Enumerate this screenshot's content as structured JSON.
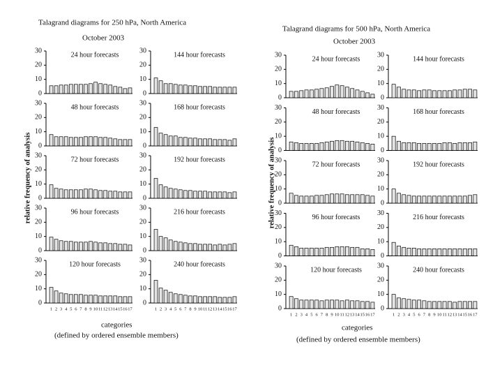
{
  "figures": [
    {
      "title": "Talagrand diagrams for 250 hPa, North America",
      "subtitle": "October 2003",
      "ylabel": "relative frequency of analysis",
      "xlabel": "categories",
      "xnote": "(defined by ordered ensemble members)",
      "chart_data": [
        {
          "type": "bar",
          "title": "24 hour forecasts",
          "color": "#e4e4e4",
          "ylim": [
            0,
            30
          ],
          "yticks": [
            0,
            10,
            20,
            30
          ],
          "values": [
            5.5,
            5.5,
            6,
            6,
            6.5,
            6.5,
            6.5,
            6.5,
            7,
            8,
            7,
            6.5,
            6,
            5,
            4.5,
            3.5,
            4
          ]
        },
        {
          "type": "bar",
          "title": "144 hour forecasts",
          "color": "#e4e4e4",
          "ylim": [
            0,
            30
          ],
          "yticks": [
            0,
            10,
            20,
            30
          ],
          "values": [
            11,
            9,
            7,
            7,
            6.5,
            6,
            6,
            5.5,
            5.5,
            5,
            5,
            5,
            4.5,
            4.5,
            4.5,
            4.5,
            4.5
          ]
        },
        {
          "type": "bar",
          "title": "48 hour forecasts",
          "color": "#e4e4e4",
          "ylim": [
            0,
            30
          ],
          "yticks": [
            0,
            10,
            20,
            30
          ],
          "values": [
            8,
            6.5,
            6.5,
            6.5,
            6,
            6,
            6,
            6.5,
            6.5,
            6.5,
            6,
            6,
            5.5,
            5,
            4.5,
            4.5,
            4.5
          ]
        },
        {
          "type": "bar",
          "title": "168 hour forecasts",
          "color": "#e4e4e4",
          "ylim": [
            0,
            30
          ],
          "yticks": [
            0,
            10,
            20,
            30
          ],
          "values": [
            13,
            9,
            8,
            7,
            7,
            6,
            6,
            5.5,
            5.5,
            5,
            5,
            5,
            4.5,
            4.5,
            4.5,
            4,
            5
          ]
        },
        {
          "type": "bar",
          "title": "72 hour forecasts",
          "color": "#e4e4e4",
          "ylim": [
            0,
            30
          ],
          "yticks": [
            0,
            10,
            20,
            30
          ],
          "values": [
            9.5,
            7,
            6.5,
            6,
            6,
            6,
            6,
            6.5,
            6.5,
            6,
            5.5,
            5.5,
            5,
            5,
            4.5,
            4.5,
            4.5
          ]
        },
        {
          "type": "bar",
          "title": "192 hour forecasts",
          "color": "#e4e4e4",
          "ylim": [
            0,
            30
          ],
          "yticks": [
            0,
            10,
            20,
            30
          ],
          "values": [
            14,
            9.5,
            8,
            7,
            6.5,
            6,
            5.5,
            5.5,
            5,
            5,
            5,
            4.5,
            4.5,
            4.5,
            4.5,
            4,
            4.5
          ]
        },
        {
          "type": "bar",
          "title": "96 hour forecasts",
          "color": "#e4e4e4",
          "ylim": [
            0,
            30
          ],
          "yticks": [
            0,
            10,
            20,
            30
          ],
          "values": [
            9.5,
            8,
            7,
            6.5,
            6.5,
            6,
            6,
            6,
            6.5,
            6,
            5.5,
            5.5,
            5,
            5,
            4.5,
            4.5,
            4
          ]
        },
        {
          "type": "bar",
          "title": "216 hour forecasts",
          "color": "#e4e4e4",
          "ylim": [
            0,
            30
          ],
          "yticks": [
            0,
            10,
            20,
            30
          ],
          "values": [
            15,
            10,
            9,
            7.5,
            6.5,
            6,
            5.5,
            5,
            5,
            4.5,
            4.5,
            4.5,
            4,
            4.5,
            4,
            4.5,
            5
          ]
        },
        {
          "type": "bar",
          "title": "120 hour forecasts",
          "color": "#e4e4e4",
          "ylim": [
            0,
            30
          ],
          "yticks": [
            0,
            10,
            20,
            30
          ],
          "categories": [
            "1",
            "2",
            "3",
            "4",
            "5",
            "6",
            "7",
            "8",
            "9",
            "10",
            "11",
            "12",
            "13",
            "14",
            "15",
            "16",
            "17"
          ],
          "values": [
            11,
            8.5,
            7,
            6.5,
            6,
            6,
            6,
            5.5,
            5.5,
            5.5,
            5,
            5,
            5,
            5,
            4.5,
            4.5,
            4.5
          ]
        },
        {
          "type": "bar",
          "title": "240 hour forecasts",
          "color": "#e4e4e4",
          "ylim": [
            0,
            30
          ],
          "yticks": [
            0,
            10,
            20,
            30
          ],
          "categories": [
            "1",
            "2",
            "3",
            "4",
            "5",
            "6",
            "7",
            "8",
            "9",
            "10",
            "11",
            "12",
            "13",
            "14",
            "15",
            "16",
            "17"
          ],
          "values": [
            16,
            10.5,
            9,
            7.5,
            6.5,
            6,
            5.5,
            5,
            5,
            4.5,
            4.5,
            4.5,
            4.5,
            4,
            4,
            4,
            4.5
          ]
        }
      ]
    },
    {
      "title": "Talagrand diagrams for 500 hPa, North America",
      "subtitle": "October 2003",
      "ylabel": "relative frequency of analysis",
      "xlabel": "categories",
      "xnote": "(defined by ordered ensemble members)",
      "chart_data": [
        {
          "type": "bar",
          "title": "24 hour forecasts",
          "color": "#e4e4e4",
          "ylim": [
            0,
            30
          ],
          "yticks": [
            0,
            10,
            20,
            30
          ],
          "values": [
            4.5,
            4.5,
            5,
            5.5,
            5.5,
            6,
            6.5,
            7,
            8,
            9,
            8.5,
            7.5,
            6.5,
            5.5,
            4.5,
            3.5,
            2.5
          ]
        },
        {
          "type": "bar",
          "title": "144 hour forecasts",
          "color": "#e4e4e4",
          "ylim": [
            0,
            30
          ],
          "yticks": [
            0,
            10,
            20,
            30
          ],
          "values": [
            9.5,
            7.5,
            6,
            5.5,
            5.5,
            5,
            5.5,
            5.5,
            5,
            5,
            5,
            5,
            5.5,
            5.5,
            6,
            6,
            5.5
          ]
        },
        {
          "type": "bar",
          "title": "48 hour forecasts",
          "color": "#e4e4e4",
          "ylim": [
            0,
            30
          ],
          "yticks": [
            0,
            10,
            20,
            30
          ],
          "values": [
            6,
            5.5,
            5,
            5,
            5,
            5,
            5.5,
            6,
            6.5,
            7,
            7,
            6.5,
            6.5,
            6,
            5.5,
            5,
            4.5
          ]
        },
        {
          "type": "bar",
          "title": "168 hour forecasts",
          "color": "#e4e4e4",
          "ylim": [
            0,
            30
          ],
          "yticks": [
            0,
            10,
            20,
            30
          ],
          "values": [
            10,
            6.5,
            5.5,
            5.5,
            5.5,
            5,
            5,
            5,
            5,
            5,
            5.5,
            5.5,
            5,
            5.5,
            5.5,
            5.5,
            6
          ]
        },
        {
          "type": "bar",
          "title": "72 hour forecasts",
          "color": "#e4e4e4",
          "ylim": [
            0,
            30
          ],
          "yticks": [
            0,
            10,
            20,
            30
          ],
          "values": [
            7,
            5.5,
            5,
            5,
            5,
            5.5,
            5.5,
            6,
            6.5,
            6.5,
            6.5,
            6,
            6,
            6,
            6,
            5.5,
            5
          ]
        },
        {
          "type": "bar",
          "title": "192 hour forecasts",
          "color": "#e4e4e4",
          "ylim": [
            0,
            30
          ],
          "yticks": [
            0,
            10,
            20,
            30
          ],
          "values": [
            10,
            7,
            6,
            5.5,
            5,
            5,
            5,
            5,
            5,
            5,
            5,
            5,
            5,
            5,
            5,
            5.5,
            6
          ]
        },
        {
          "type": "bar",
          "title": "96 hour forecasts",
          "color": "#e4e4e4",
          "ylim": [
            0,
            30
          ],
          "yticks": [
            0,
            10,
            20,
            30
          ],
          "values": [
            7.5,
            6.5,
            5.5,
            5.5,
            5.5,
            5.5,
            5.5,
            6,
            6,
            6.5,
            6.5,
            6.5,
            6,
            6,
            5,
            5,
            4.5
          ]
        },
        {
          "type": "bar",
          "title": "216 hour forecasts",
          "color": "#e4e4e4",
          "ylim": [
            0,
            30
          ],
          "yticks": [
            0,
            10,
            20,
            30
          ],
          "values": [
            9.5,
            7,
            6,
            5.5,
            5.5,
            5,
            5,
            5,
            5,
            5,
            5,
            5,
            5,
            5,
            5,
            5,
            5
          ]
        },
        {
          "type": "bar",
          "title": "120 hour forecasts",
          "color": "#e4e4e4",
          "ylim": [
            0,
            30
          ],
          "yticks": [
            0,
            10,
            20,
            30
          ],
          "categories": [
            "1",
            "2",
            "3",
            "4",
            "5",
            "6",
            "7",
            "8",
            "9",
            "10",
            "11",
            "12",
            "13",
            "14",
            "15",
            "16",
            "17"
          ],
          "values": [
            8.5,
            7,
            6,
            6,
            6,
            6,
            5.5,
            6,
            6,
            6,
            5.5,
            6,
            5.5,
            5.5,
            5,
            5,
            4.5
          ]
        },
        {
          "type": "bar",
          "title": "240 hour forecasts",
          "color": "#e4e4e4",
          "ylim": [
            0,
            30
          ],
          "yticks": [
            0,
            10,
            20,
            30
          ],
          "categories": [
            "1",
            "2",
            "3",
            "4",
            "5",
            "6",
            "7",
            "8",
            "9",
            "10",
            "11",
            "12",
            "13",
            "14",
            "15",
            "16",
            "17"
          ],
          "values": [
            10,
            7.5,
            7,
            6.5,
            6,
            6,
            5.5,
            5,
            5,
            5,
            5,
            5,
            4.5,
            5,
            5,
            5,
            5
          ]
        }
      ]
    }
  ]
}
